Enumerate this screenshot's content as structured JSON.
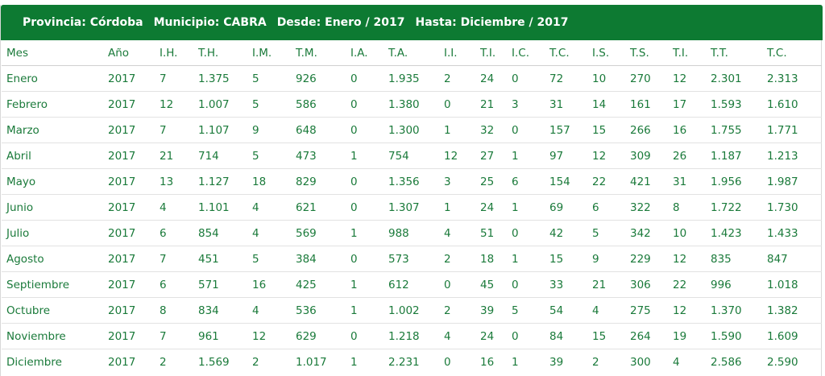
{
  "header": {
    "provincia": "Provincia: Córdoba",
    "municipio": "Municipio: CABRA",
    "desde": "Desde: Enero / 2017",
    "hasta": "Hasta: Diciembre / 2017"
  },
  "table": {
    "columns": [
      "Mes",
      "Año",
      "I.H.",
      "T.H.",
      "I.M.",
      "T.M.",
      "I.A.",
      "T.A.",
      "I.I.",
      "T.I.",
      "I.C.",
      "T.C.",
      "I.S.",
      "T.S.",
      "T.I.",
      "T.T.",
      "T.C."
    ],
    "rows": [
      [
        "Enero",
        "2017",
        "7",
        "1.375",
        "5",
        "926",
        "0",
        "1.935",
        "2",
        "24",
        "0",
        "72",
        "10",
        "270",
        "12",
        "2.301",
        "2.313"
      ],
      [
        "Febrero",
        "2017",
        "12",
        "1.007",
        "5",
        "586",
        "0",
        "1.380",
        "0",
        "21",
        "3",
        "31",
        "14",
        "161",
        "17",
        "1.593",
        "1.610"
      ],
      [
        "Marzo",
        "2017",
        "7",
        "1.107",
        "9",
        "648",
        "0",
        "1.300",
        "1",
        "32",
        "0",
        "157",
        "15",
        "266",
        "16",
        "1.755",
        "1.771"
      ],
      [
        "Abril",
        "2017",
        "21",
        "714",
        "5",
        "473",
        "1",
        "754",
        "12",
        "27",
        "1",
        "97",
        "12",
        "309",
        "26",
        "1.187",
        "1.213"
      ],
      [
        "Mayo",
        "2017",
        "13",
        "1.127",
        "18",
        "829",
        "0",
        "1.356",
        "3",
        "25",
        "6",
        "154",
        "22",
        "421",
        "31",
        "1.956",
        "1.987"
      ],
      [
        "Junio",
        "2017",
        "4",
        "1.101",
        "4",
        "621",
        "0",
        "1.307",
        "1",
        "24",
        "1",
        "69",
        "6",
        "322",
        "8",
        "1.722",
        "1.730"
      ],
      [
        "Julio",
        "2017",
        "6",
        "854",
        "4",
        "569",
        "1",
        "988",
        "4",
        "51",
        "0",
        "42",
        "5",
        "342",
        "10",
        "1.423",
        "1.433"
      ],
      [
        "Agosto",
        "2017",
        "7",
        "451",
        "5",
        "384",
        "0",
        "573",
        "2",
        "18",
        "1",
        "15",
        "9",
        "229",
        "12",
        "835",
        "847"
      ],
      [
        "Septiembre",
        "2017",
        "6",
        "571",
        "16",
        "425",
        "1",
        "612",
        "0",
        "45",
        "0",
        "33",
        "21",
        "306",
        "22",
        "996",
        "1.018"
      ],
      [
        "Octubre",
        "2017",
        "8",
        "834",
        "4",
        "536",
        "1",
        "1.002",
        "2",
        "39",
        "5",
        "54",
        "4",
        "275",
        "12",
        "1.370",
        "1.382"
      ],
      [
        "Noviembre",
        "2017",
        "7",
        "961",
        "12",
        "629",
        "0",
        "1.218",
        "4",
        "24",
        "0",
        "84",
        "15",
        "264",
        "19",
        "1.590",
        "1.609"
      ],
      [
        "Diciembre",
        "2017",
        "2",
        "1.569",
        "2",
        "1.017",
        "1",
        "2.231",
        "0",
        "16",
        "1",
        "39",
        "2",
        "300",
        "4",
        "2.586",
        "2.590"
      ]
    ]
  },
  "colors": {
    "header_bg": "#0d7a32",
    "text": "#1a7a3a"
  }
}
